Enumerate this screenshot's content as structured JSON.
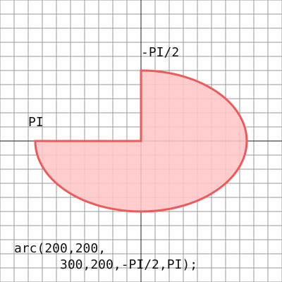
{
  "labels": {
    "start_angle": "-PI/2",
    "end_angle": "PI"
  },
  "code": {
    "line1": "arc(200,200,",
    "line2": "300,200,-PI/2,PI);"
  },
  "colors": {
    "background": "#ffffff",
    "grid": "#9a9a9a",
    "axis": "#444444",
    "arc_fill": "#ffc4c4",
    "arc_stroke": "#ee5a5a",
    "text": "#111111"
  },
  "arc": {
    "center": [
      200,
      200
    ],
    "size": [
      300,
      200
    ],
    "start": "-PI/2",
    "stop": "PI"
  }
}
